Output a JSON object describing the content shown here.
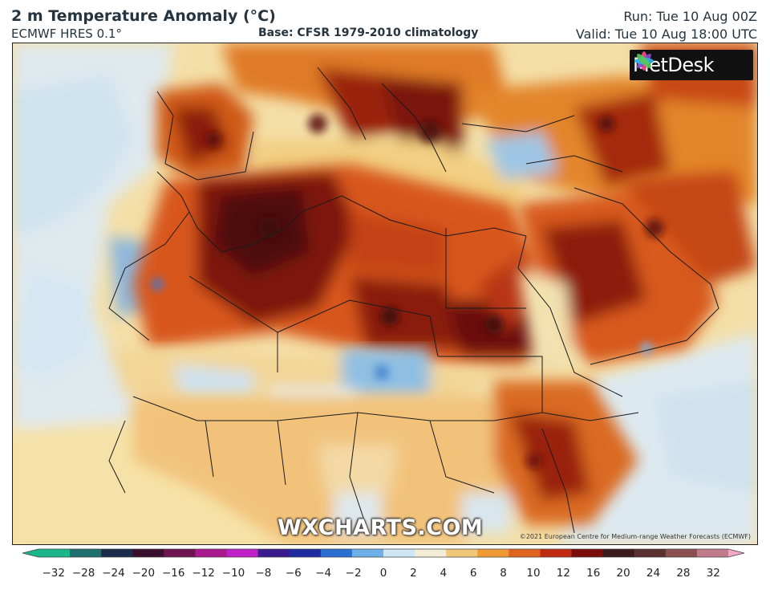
{
  "header": {
    "title": "2 m Temperature Anomaly (°C)",
    "subtitle": "ECMWF HRES 0.1°",
    "base": "Base: CFSR 1979-2010 climatology",
    "run": "Run: Tue 10 Aug 00Z",
    "valid": "Valid: Tue 10 Aug 18:00 UTC"
  },
  "map": {
    "logo_text": "MetDesk",
    "watermark": "WXCHARTS.COM",
    "copyright": "©2021 European Centre for Medium-range Weather Forecasts (ECMWF)"
  },
  "colorbar": {
    "ticks": [
      "−32",
      "−28",
      "−24",
      "−20",
      "−16",
      "−12",
      "−10",
      "−8",
      "−6",
      "−4",
      "−2",
      "0",
      "2",
      "4",
      "6",
      "8",
      "10",
      "12",
      "16",
      "20",
      "24",
      "28",
      "32"
    ],
    "colors": [
      "#1db58a",
      "#1f6f6e",
      "#1b2d4a",
      "#3a0f2e",
      "#6e1450",
      "#a81a8e",
      "#c020c8",
      "#3a1a8c",
      "#1e2ca0",
      "#2b6fd0",
      "#6fb0e8",
      "#cfe6f5",
      "#f3ecd6",
      "#f2c77a",
      "#f09a36",
      "#e06420",
      "#c02a10",
      "#7a0c0a",
      "#3a1a1a",
      "#5a3030",
      "#8a5050",
      "#c07a8a",
      "#f0a8c8"
    ]
  }
}
